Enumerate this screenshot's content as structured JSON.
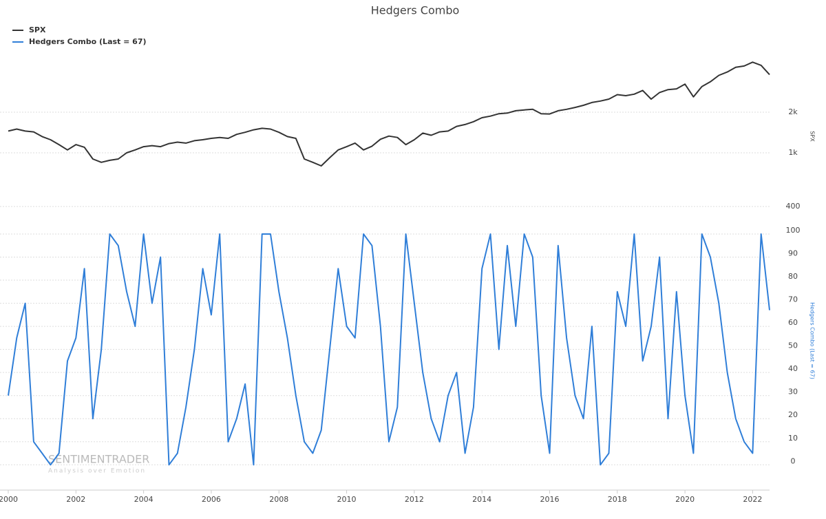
{
  "chart_data": {
    "type": "line",
    "title": "Hedgers Combo",
    "y_label": "SPX",
    "y2_label": "Hedgers Combo (Last = 67)",
    "watermark": [
      "SENTIMENTRADER",
      "Analysis over Emotion"
    ],
    "x": [
      2000,
      2000.25,
      2000.5,
      2000.75,
      2001,
      2001.25,
      2001.5,
      2001.75,
      2002,
      2002.25,
      2002.5,
      2002.75,
      2003,
      2003.25,
      2003.5,
      2003.75,
      2004,
      2004.25,
      2004.5,
      2004.75,
      2005,
      2005.25,
      2005.5,
      2005.75,
      2006,
      2006.25,
      2006.5,
      2006.75,
      2007,
      2007.25,
      2007.5,
      2007.75,
      2008,
      2008.25,
      2008.5,
      2008.75,
      2009,
      2009.25,
      2009.5,
      2009.75,
      2010,
      2010.25,
      2010.5,
      2010.75,
      2011,
      2011.25,
      2011.5,
      2011.75,
      2012,
      2012.25,
      2012.5,
      2012.75,
      2013,
      2013.25,
      2013.5,
      2013.75,
      2014,
      2014.25,
      2014.5,
      2014.75,
      2015,
      2015.25,
      2015.5,
      2015.75,
      2016,
      2016.25,
      2016.5,
      2016.75,
      2017,
      2017.25,
      2017.5,
      2017.75,
      2018,
      2018.25,
      2018.5,
      2018.75,
      2019,
      2019.25,
      2019.5,
      2019.75,
      2020,
      2020.25,
      2020.5,
      2020.75,
      2021,
      2021.25,
      2021.5,
      2021.75,
      2022,
      2022.25,
      2022.5
    ],
    "series": [
      {
        "name": "SPX",
        "color": "#333333",
        "axis": "y",
        "values": [
          1450,
          1500,
          1450,
          1430,
          1320,
          1250,
          1150,
          1050,
          1150,
          1100,
          900,
          850,
          880,
          900,
          1000,
          1050,
          1110,
          1130,
          1110,
          1170,
          1200,
          1180,
          1230,
          1250,
          1280,
          1300,
          1280,
          1370,
          1420,
          1480,
          1520,
          1500,
          1420,
          1320,
          1280,
          900,
          850,
          800,
          920,
          1050,
          1110,
          1180,
          1050,
          1120,
          1260,
          1330,
          1300,
          1150,
          1250,
          1400,
          1350,
          1430,
          1450,
          1570,
          1620,
          1700,
          1820,
          1870,
          1950,
          1970,
          2050,
          2080,
          2100,
          1950,
          1940,
          2050,
          2100,
          2170,
          2250,
          2360,
          2420,
          2500,
          2700,
          2650,
          2720,
          2900,
          2500,
          2800,
          2940,
          2980,
          3230,
          2600,
          3100,
          3360,
          3750,
          3970,
          4300,
          4400,
          4700,
          4450,
          3800
        ]
      },
      {
        "name": "Hedgers Combo (Last = 67)",
        "color": "#2f7ed8",
        "axis": "y2",
        "values": [
          30,
          55,
          70,
          10,
          5,
          0,
          5,
          45,
          55,
          85,
          20,
          50,
          100,
          95,
          75,
          60,
          100,
          70,
          90,
          0,
          5,
          25,
          50,
          85,
          65,
          100,
          10,
          20,
          35,
          0,
          100,
          100,
          75,
          55,
          30,
          10,
          5,
          15,
          50,
          85,
          60,
          55,
          100,
          95,
          60,
          10,
          25,
          100,
          70,
          40,
          20,
          10,
          30,
          40,
          5,
          25,
          85,
          100,
          50,
          95,
          60,
          100,
          90,
          30,
          5,
          95,
          55,
          30,
          20,
          60,
          0,
          5,
          75,
          60,
          100,
          45,
          60,
          90,
          20,
          75,
          30,
          5,
          100,
          90,
          70,
          40,
          20,
          10,
          5,
          100,
          67
        ]
      }
    ],
    "xlim": [
      2000,
      2022.5
    ],
    "xticks": [
      2000,
      2002,
      2004,
      2006,
      2008,
      2010,
      2012,
      2014,
      2016,
      2018,
      2020,
      2022
    ],
    "ylim": [
      400,
      5000
    ],
    "log_y": true,
    "yticks": [
      400,
      {
        "value": 1000,
        "label": "1k"
      },
      {
        "value": 2000,
        "label": "2k"
      }
    ],
    "y2lim": [
      -2,
      100
    ],
    "y2ticks": [
      0,
      10,
      20,
      30,
      40,
      50,
      60,
      70,
      80,
      90,
      100
    ],
    "grid": true,
    "legend": "top-left"
  }
}
